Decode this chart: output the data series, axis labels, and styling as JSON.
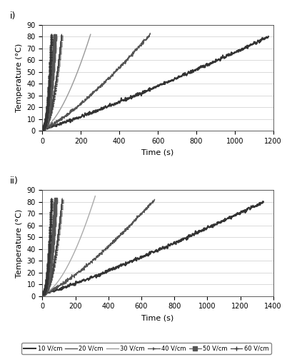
{
  "title_i": "i)",
  "title_ii": "ii)",
  "xlabel": "Time (s)",
  "ylabel": "Temperature (°C)",
  "ylim": [
    0,
    90
  ],
  "yticks": [
    0,
    10,
    20,
    30,
    40,
    50,
    60,
    70,
    80,
    90
  ],
  "xlim_i": [
    0,
    1200
  ],
  "xticks_i": [
    0,
    200,
    400,
    600,
    800,
    1000,
    1200
  ],
  "xlim_ii": [
    0,
    1400
  ],
  "xticks_ii": [
    0,
    200,
    400,
    600,
    800,
    1000,
    1200,
    1400
  ],
  "legend_labels": [
    "10 V/cm",
    "20 V/cm",
    "30 V/cm",
    "40 V/cm",
    "50 V/cm",
    "60 V/cm"
  ],
  "bg_color": "#ffffff",
  "grid_color": "#cccccc",
  "panel_i": {
    "curves": [
      {
        "t_max": 1175,
        "T_end": 80,
        "power": 1.15,
        "noise": true,
        "color": "#333333",
        "lw": 1.5,
        "marker": null,
        "markevery": 0
      },
      {
        "t_max": 560,
        "T_end": 82,
        "power": 1.3,
        "noise": true,
        "color": "#555555",
        "lw": 1.0,
        "marker": null,
        "markevery": 0
      },
      {
        "t_max": 250,
        "T_end": 82,
        "power": 1.6,
        "noise": false,
        "color": "#999999",
        "lw": 1.0,
        "marker": null,
        "markevery": 0
      },
      {
        "t_max": 100,
        "T_end": 82,
        "power": 2.0,
        "noise": false,
        "color": "#444444",
        "lw": 0.8,
        "marker": "4",
        "markevery": 5
      },
      {
        "t_max": 65,
        "T_end": 82,
        "power": 2.2,
        "noise": false,
        "color": "#555555",
        "lw": 0.8,
        "marker": "s",
        "markevery": 4
      },
      {
        "t_max": 47,
        "T_end": 82,
        "power": 2.4,
        "noise": false,
        "color": "#333333",
        "lw": 0.8,
        "marker": "+",
        "markevery": 3
      }
    ]
  },
  "panel_ii": {
    "curves": [
      {
        "t_max": 1340,
        "T_end": 80,
        "power": 1.15,
        "noise": true,
        "color": "#333333",
        "lw": 1.5,
        "marker": null,
        "markevery": 0
      },
      {
        "t_max": 680,
        "T_end": 82,
        "power": 1.3,
        "noise": true,
        "color": "#555555",
        "lw": 1.0,
        "marker": null,
        "markevery": 0
      },
      {
        "t_max": 320,
        "T_end": 85,
        "power": 1.7,
        "noise": false,
        "color": "#aaaaaa",
        "lw": 1.0,
        "marker": null,
        "markevery": 0
      },
      {
        "t_max": 120,
        "T_end": 83,
        "power": 2.1,
        "noise": false,
        "color": "#444444",
        "lw": 0.8,
        "marker": "4",
        "markevery": 5
      },
      {
        "t_max": 80,
        "T_end": 83,
        "power": 2.3,
        "noise": false,
        "color": "#555555",
        "lw": 0.8,
        "marker": "s",
        "markevery": 4
      },
      {
        "t_max": 55,
        "T_end": 83,
        "power": 2.5,
        "noise": false,
        "color": "#333333",
        "lw": 0.8,
        "marker": "+",
        "markevery": 3
      }
    ]
  }
}
